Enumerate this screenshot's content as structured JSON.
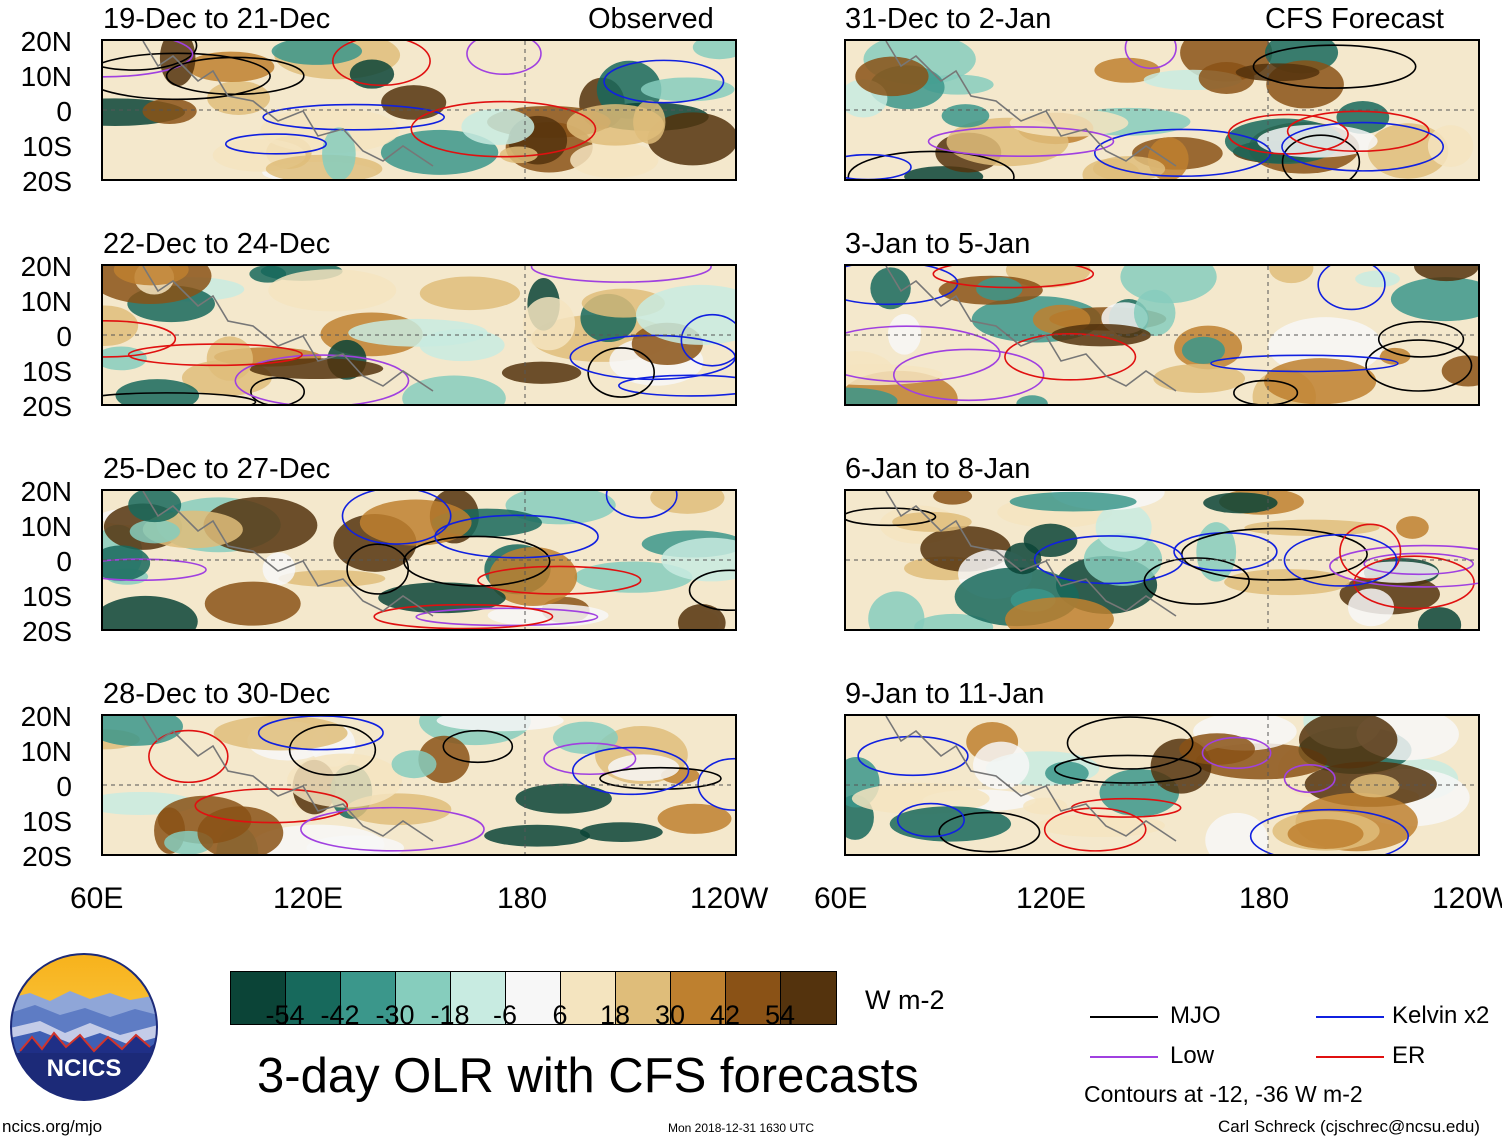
{
  "columns": {
    "left": "Observed",
    "right": "CFS Forecast"
  },
  "panels_left": [
    {
      "title": "19-Dec to 21-Dec"
    },
    {
      "title": "22-Dec to 24-Dec"
    },
    {
      "title": "25-Dec to 27-Dec"
    },
    {
      "title": "28-Dec to 30-Dec"
    }
  ],
  "panels_right": [
    {
      "title": "31-Dec to 2-Jan"
    },
    {
      "title": "3-Jan to 5-Jan"
    },
    {
      "title": "6-Jan to 8-Jan"
    },
    {
      "title": "9-Jan to 11-Jan"
    }
  ],
  "ylabels": [
    "20N",
    "10N",
    "0",
    "10S",
    "20S"
  ],
  "xlabels": [
    "60E",
    "120E",
    "180",
    "120W"
  ],
  "colorbar": {
    "colors": [
      "#0b4437",
      "#17695c",
      "#3b978b",
      "#86cdbd",
      "#c8ebe1",
      "#f7f7f7",
      "#f4e4bf",
      "#dfbd7a",
      "#be802f",
      "#8a5216",
      "#54330d"
    ],
    "ticks": [
      "-54",
      "-42",
      "-30",
      "-18",
      "-6",
      "6",
      "18",
      "30",
      "42",
      "54"
    ],
    "units": "W m-2"
  },
  "legend": {
    "items": [
      {
        "label": "MJO",
        "color": "#000000"
      },
      {
        "label": "Kelvin x2",
        "color": "#1020e0"
      },
      {
        "label": "Low",
        "color": "#a040e0"
      },
      {
        "label": "ER",
        "color": "#e01010"
      }
    ],
    "note": "Contours at -12, -36 W m-2"
  },
  "logo": {
    "text": "NCICS"
  },
  "main_title": "3-day OLR with CFS forecasts",
  "footer": {
    "url": "ncics.org/mjo",
    "timestamp": "Mon 2018-12-31 1630 UTC",
    "credit": "Carl Schreck (cjschrec@ncsu.edu)"
  },
  "chart_data": {
    "type": "heatmap",
    "title": "3-day OLR with CFS forecasts",
    "variable": "OLR anomaly",
    "units": "W m-2",
    "xlim": [
      "60E",
      "120W"
    ],
    "ylim": [
      "20S",
      "20N"
    ],
    "color_levels": [
      -54,
      -42,
      -30,
      -18,
      -6,
      6,
      18,
      30,
      42,
      54
    ],
    "contour_levels": [
      -12,
      -36
    ],
    "contour_series": [
      "MJO",
      "Kelvin x2",
      "Low",
      "ER"
    ]
  }
}
